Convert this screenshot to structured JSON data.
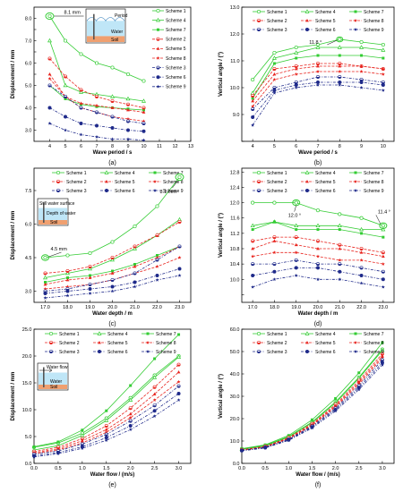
{
  "colors": {
    "green": "#33cc33",
    "red": "#e8251f",
    "navy": "#1f2a8a",
    "inset_water": "#bfe6f7",
    "inset_soil": "#f0a070",
    "inset_pile": "#555555"
  },
  "legend_labels": [
    "Scheme 1",
    "Scheme 4",
    "Scheme 7",
    "Scheme 2",
    "Scheme 5",
    "Scheme 8",
    "Scheme 3",
    "Scheme 6",
    "Scheme 9"
  ],
  "insets": {
    "a": {
      "title": "Period",
      "water": "Water",
      "soil": "Soil"
    },
    "c": {
      "title": "Still water surface",
      "sub": "Depth of water",
      "soil": "Soil"
    },
    "e": {
      "title": "Water flow",
      "water": "Water",
      "soil": "Soil"
    }
  },
  "chart_data": [
    {
      "panel": "(a)",
      "type": "line",
      "xlabel": "Wave period / s",
      "ylabel": "Displacement / mm",
      "xlim": [
        3,
        13
      ],
      "ylim": [
        2.5,
        8.5
      ],
      "xticks": [
        4,
        5,
        6,
        7,
        8,
        9,
        10,
        11,
        12,
        13
      ],
      "yticks": [
        3.0,
        3.5,
        4.0,
        4.5,
        5.0,
        5.5,
        6.0,
        6.5,
        7.0,
        7.5,
        8.0
      ],
      "ytick_labels": [
        "3.0",
        "",
        "4.0",
        "",
        "5.0",
        "",
        "6.0",
        "",
        "7.0",
        "",
        "8.0"
      ],
      "x": [
        4,
        5,
        6,
        7,
        8,
        9,
        10
      ],
      "series": [
        {
          "name": "Scheme 1",
          "values": [
            8.1,
            7.0,
            6.4,
            6.0,
            5.8,
            5.5,
            5.2
          ]
        },
        {
          "name": "Scheme 4",
          "values": [
            7.0,
            5.0,
            4.7,
            4.6,
            4.5,
            4.4,
            4.3
          ]
        },
        {
          "name": "Scheme 7",
          "values": [
            5.0,
            4.4,
            4.15,
            4.05,
            4.0,
            3.95,
            3.9
          ]
        },
        {
          "name": "Scheme 2",
          "values": [
            6.2,
            5.4,
            4.8,
            4.5,
            4.3,
            4.15,
            4.0
          ]
        },
        {
          "name": "Scheme 5",
          "values": [
            5.5,
            4.5,
            4.2,
            4.1,
            4.0,
            3.9,
            3.8
          ]
        },
        {
          "name": "Scheme 8",
          "values": [
            5.3,
            4.5,
            4.0,
            3.8,
            3.6,
            3.5,
            3.4
          ]
        },
        {
          "name": "Scheme 3",
          "values": [
            5.0,
            4.5,
            4.0,
            3.8,
            3.6,
            3.4,
            3.3
          ]
        },
        {
          "name": "Scheme 6",
          "values": [
            4.0,
            3.6,
            3.3,
            3.2,
            3.1,
            3.0,
            2.95
          ]
        },
        {
          "name": "Scheme 9",
          "values": [
            3.3,
            3.0,
            2.8,
            2.7,
            2.6,
            2.6,
            2.55
          ]
        }
      ],
      "annotations": [
        {
          "text": "8.1 mm",
          "x": 4,
          "y": 8.1
        }
      ]
    },
    {
      "panel": "(b)",
      "type": "line",
      "xlabel": "Wave period / s",
      "ylabel": "Vertical angle / (°)",
      "xlim": [
        3.5,
        10.5
      ],
      "ylim": [
        8.0,
        13.0
      ],
      "xticks": [
        4,
        5,
        6,
        7,
        8,
        9,
        10
      ],
      "yticks": [
        8.0,
        9.0,
        10.0,
        11.0,
        12.0,
        13.0
      ],
      "ytick_labels": [
        "",
        "9.0",
        "10.0",
        "11.0",
        "12.0",
        "13.0"
      ],
      "x": [
        4,
        5,
        6,
        7,
        8,
        9,
        10
      ],
      "series": [
        {
          "name": "Scheme 1",
          "values": [
            10.3,
            11.3,
            11.5,
            11.6,
            11.8,
            11.7,
            11.6
          ]
        },
        {
          "name": "Scheme 4",
          "values": [
            9.8,
            11.1,
            11.3,
            11.5,
            11.5,
            11.5,
            11.4
          ]
        },
        {
          "name": "Scheme 7",
          "values": [
            9.6,
            10.9,
            11.1,
            11.2,
            11.2,
            11.2,
            11.1
          ]
        },
        {
          "name": "Scheme 2",
          "values": [
            9.7,
            10.7,
            10.8,
            10.9,
            10.9,
            10.8,
            10.7
          ]
        },
        {
          "name": "Scheme 5",
          "values": [
            9.5,
            10.5,
            10.7,
            10.8,
            10.8,
            10.8,
            10.7
          ]
        },
        {
          "name": "Scheme 8",
          "values": [
            9.3,
            10.3,
            10.5,
            10.6,
            10.6,
            10.6,
            10.5
          ]
        },
        {
          "name": "Scheme 3",
          "values": [
            9.2,
            10.0,
            10.2,
            10.4,
            10.4,
            10.3,
            10.2
          ]
        },
        {
          "name": "Scheme 6",
          "values": [
            8.9,
            9.9,
            10.1,
            10.2,
            10.2,
            10.2,
            10.1
          ]
        },
        {
          "name": "Scheme 9",
          "values": [
            8.6,
            9.8,
            10.0,
            10.1,
            10.1,
            10.0,
            9.9
          ]
        }
      ],
      "annotations": [
        {
          "text": "11.8 °",
          "x": 8,
          "y": 11.8
        }
      ]
    },
    {
      "panel": "(c)",
      "type": "line",
      "xlabel": "Water depth / m",
      "ylabel": "Displacement / mm",
      "xlim": [
        16.5,
        23.5
      ],
      "ylim": [
        2.5,
        8.5
      ],
      "xticks": [
        17,
        18,
        19,
        20,
        21,
        22,
        23
      ],
      "xtick_labels": [
        "17.0",
        "18.0",
        "19.0",
        "20.0",
        "21.0",
        "22.0",
        "23.0"
      ],
      "yticks": [
        3.0,
        4.5,
        6.0,
        7.5
      ],
      "ytick_labels": [
        "3.0",
        "4.5",
        "6.0",
        "7.5"
      ],
      "x": [
        17,
        18,
        19,
        20,
        21,
        22,
        23
      ],
      "series": [
        {
          "name": "Scheme 1",
          "values": [
            4.5,
            4.6,
            4.7,
            5.2,
            5.9,
            6.8,
            8.1
          ]
        },
        {
          "name": "Scheme 4",
          "values": [
            3.6,
            3.8,
            4.0,
            4.4,
            4.9,
            5.5,
            6.2
          ]
        },
        {
          "name": "Scheme 7",
          "values": [
            3.4,
            3.6,
            3.7,
            3.9,
            4.2,
            4.6,
            5.0
          ]
        },
        {
          "name": "Scheme 2",
          "values": [
            3.8,
            3.9,
            4.1,
            4.5,
            5.0,
            5.5,
            6.1
          ]
        },
        {
          "name": "Scheme 5",
          "values": [
            3.3,
            3.5,
            3.6,
            3.8,
            4.1,
            4.5,
            5.0
          ]
        },
        {
          "name": "Scheme 8",
          "values": [
            3.1,
            3.2,
            3.3,
            3.5,
            3.8,
            4.1,
            4.5
          ]
        },
        {
          "name": "Scheme 3",
          "values": [
            3.0,
            3.1,
            3.3,
            3.5,
            3.8,
            4.4,
            5.0
          ]
        },
        {
          "name": "Scheme 6",
          "values": [
            2.9,
            3.0,
            3.1,
            3.2,
            3.4,
            3.7,
            4.0
          ]
        },
        {
          "name": "Scheme 9",
          "values": [
            2.7,
            2.8,
            2.9,
            3.0,
            3.2,
            3.5,
            3.7
          ]
        }
      ],
      "annotations": [
        {
          "text": "4.5 mm",
          "x": 17,
          "y": 4.5
        },
        {
          "text": "8.1 mm",
          "x": 23,
          "y": 8.1
        }
      ]
    },
    {
      "panel": "(d)",
      "type": "line",
      "xlabel": "Water depth / m",
      "ylabel": "Vertical angle / (°)",
      "xlim": [
        16.5,
        23.5
      ],
      "ylim": [
        9.4,
        12.9
      ],
      "xticks": [
        17,
        18,
        19,
        20,
        21,
        22,
        23
      ],
      "xtick_labels": [
        "17.0",
        "18.0",
        "19.0",
        "20.0",
        "21.0",
        "22.0",
        "23.0"
      ],
      "yticks": [
        9.6,
        10.0,
        10.4,
        10.8,
        11.2,
        11.6,
        12.0,
        12.4,
        12.8
      ],
      "ytick_labels": [
        "",
        "10.0",
        "10.4",
        "10.8",
        "11.2",
        "11.6",
        "12.0",
        "12.4",
        "12.8"
      ],
      "x": [
        17,
        18,
        19,
        20,
        21,
        22,
        23
      ],
      "series": [
        {
          "name": "Scheme 1",
          "values": [
            12.0,
            12.0,
            12.0,
            11.8,
            11.7,
            11.6,
            11.4
          ]
        },
        {
          "name": "Scheme 4",
          "values": [
            11.4,
            11.5,
            11.4,
            11.4,
            11.4,
            11.3,
            11.3
          ]
        },
        {
          "name": "Scheme 7",
          "values": [
            11.3,
            11.5,
            11.3,
            11.3,
            11.3,
            11.2,
            11.1
          ]
        },
        {
          "name": "Scheme 2",
          "values": [
            11.0,
            11.1,
            11.1,
            11.0,
            10.9,
            10.8,
            10.7
          ]
        },
        {
          "name": "Scheme 5",
          "values": [
            10.8,
            11.0,
            10.9,
            10.8,
            10.8,
            10.7,
            10.6
          ]
        },
        {
          "name": "Scheme 8",
          "values": [
            10.6,
            10.7,
            10.7,
            10.6,
            10.5,
            10.5,
            10.4
          ]
        },
        {
          "name": "Scheme 3",
          "values": [
            10.4,
            10.4,
            10.5,
            10.4,
            10.4,
            10.3,
            10.2
          ]
        },
        {
          "name": "Scheme 6",
          "values": [
            10.1,
            10.2,
            10.3,
            10.3,
            10.2,
            10.1,
            10.0
          ]
        },
        {
          "name": "Scheme 9",
          "values": [
            9.8,
            10.0,
            10.1,
            10.0,
            10.0,
            9.9,
            9.8
          ]
        }
      ],
      "annotations": [
        {
          "text": "12.0 °",
          "x": 19,
          "y": 12.0
        },
        {
          "text": "11.4 °",
          "x": 23,
          "y": 11.4
        }
      ]
    },
    {
      "panel": "(e)",
      "type": "line",
      "xlabel": "Water flow / (m/s)",
      "ylabel": "Displacement / mm",
      "xlim": [
        0,
        3.25
      ],
      "ylim": [
        0,
        25
      ],
      "xticks": [
        0,
        0.5,
        1.0,
        1.5,
        2.0,
        2.5,
        3.0
      ],
      "xtick_labels": [
        "0.0",
        "0.5",
        "1.0",
        "1.5",
        "2.0",
        "2.5",
        "3.0"
      ],
      "yticks": [
        0,
        5,
        10,
        15,
        20,
        25
      ],
      "ytick_labels": [
        "0.0",
        "5.0",
        "10.0",
        "15.0",
        "20.0",
        "25.0"
      ],
      "x": [
        0,
        0.5,
        1.0,
        1.5,
        2.0,
        2.5,
        3.0
      ],
      "series": [
        {
          "name": "Scheme 1",
          "values": [
            3.0,
            3.8,
            5.6,
            8.4,
            12.2,
            16.4,
            20.0
          ]
        },
        {
          "name": "Scheme 4",
          "values": [
            2.5,
            3.3,
            5.2,
            8.0,
            11.8,
            16.0,
            19.8
          ]
        },
        {
          "name": "Scheme 7",
          "values": [
            3.1,
            4.0,
            6.2,
            9.8,
            14.5,
            19.5,
            24.0
          ]
        },
        {
          "name": "Scheme 2",
          "values": [
            2.2,
            3.0,
            4.6,
            7.0,
            10.3,
            14.2,
            18.4
          ]
        },
        {
          "name": "Scheme 5",
          "values": [
            2.0,
            2.7,
            4.2,
            6.3,
            9.2,
            12.9,
            17.0
          ]
        },
        {
          "name": "Scheme 8",
          "values": [
            1.8,
            2.5,
            3.8,
            5.8,
            8.5,
            11.8,
            15.2
          ]
        },
        {
          "name": "Scheme 3",
          "values": [
            1.7,
            2.3,
            3.6,
            5.4,
            7.9,
            10.8,
            14.4
          ]
        },
        {
          "name": "Scheme 6",
          "values": [
            1.4,
            2.0,
            3.1,
            4.8,
            7.0,
            9.8,
            13.0
          ]
        },
        {
          "name": "Scheme 9",
          "values": [
            1.2,
            1.8,
            2.8,
            4.3,
            6.3,
            8.8,
            11.8
          ]
        }
      ]
    },
    {
      "panel": "(f)",
      "type": "line",
      "xlabel": "Water flow / (m/s)",
      "ylabel": "Vertical angle / (°)",
      "xlim": [
        0,
        3.25
      ],
      "ylim": [
        0,
        60
      ],
      "xticks": [
        0,
        0.5,
        1.0,
        1.5,
        2.0,
        2.5,
        3.0
      ],
      "xtick_labels": [
        "0.0",
        "0.5",
        "1.0",
        "1.5",
        "2.0",
        "2.5",
        "3.0"
      ],
      "yticks": [
        0,
        10,
        20,
        30,
        40,
        50,
        60
      ],
      "ytick_labels": [
        "0.0",
        "10.0",
        "20.0",
        "30.0",
        "40.0",
        "50.0",
        "60.0"
      ],
      "x": [
        0,
        0.5,
        1.0,
        1.5,
        2.0,
        2.5,
        3.0
      ],
      "series": [
        {
          "name": "Scheme 1",
          "values": [
            6.5,
            8.0,
            12.0,
            18.5,
            27.5,
            38.5,
            51.0
          ]
        },
        {
          "name": "Scheme 4",
          "values": [
            6.3,
            7.8,
            11.8,
            18.2,
            27.0,
            38.0,
            50.5
          ]
        },
        {
          "name": "Scheme 7",
          "values": [
            6.6,
            8.3,
            12.5,
            19.5,
            29.0,
            40.5,
            54.0
          ]
        },
        {
          "name": "Scheme 2",
          "values": [
            6.1,
            7.6,
            11.5,
            17.7,
            26.3,
            37.0,
            49.0
          ]
        },
        {
          "name": "Scheme 5",
          "values": [
            6.0,
            7.4,
            11.2,
            17.3,
            25.7,
            36.2,
            48.0
          ]
        },
        {
          "name": "Scheme 8",
          "values": [
            5.9,
            7.3,
            11.0,
            17.0,
            25.2,
            35.5,
            47.2
          ]
        },
        {
          "name": "Scheme 3",
          "values": [
            5.8,
            7.2,
            10.8,
            16.6,
            24.6,
            34.7,
            46.3
          ]
        },
        {
          "name": "Scheme 6",
          "values": [
            5.7,
            7.0,
            10.5,
            16.2,
            24.0,
            33.8,
            45.0
          ]
        },
        {
          "name": "Scheme 9",
          "values": [
            5.6,
            6.9,
            10.3,
            15.8,
            23.4,
            33.0,
            44.0
          ]
        }
      ]
    }
  ]
}
